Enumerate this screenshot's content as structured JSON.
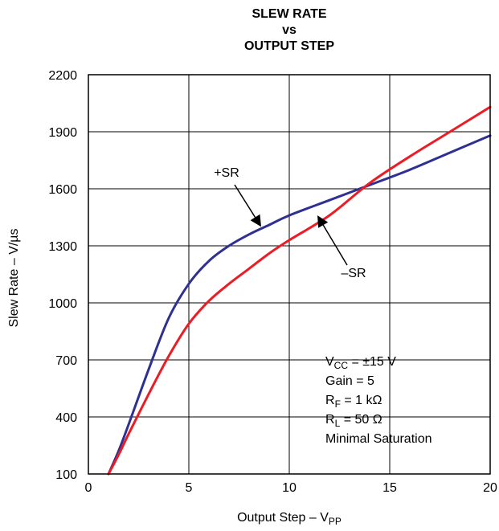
{
  "chart_data": {
    "type": "line",
    "title": [
      "SLEW RATE",
      "vs",
      "OUTPUT STEP"
    ],
    "xlabel": {
      "main": "Output Step – V",
      "sub": "PP"
    },
    "ylabel": "Slew Rate – V/µs",
    "xlim": [
      0,
      20
    ],
    "ylim": [
      100,
      2200
    ],
    "xticks": [
      "0",
      "5",
      "10",
      "15",
      "20"
    ],
    "yticks": [
      "100",
      "400",
      "700",
      "1000",
      "1300",
      "1600",
      "1900",
      "2200"
    ],
    "grid": true,
    "series": [
      {
        "name": "+SR",
        "color": "#2e3192",
        "x": [
          1,
          1.5,
          2,
          3,
          4,
          5,
          6,
          7,
          8,
          9,
          10,
          12,
          14,
          16,
          18,
          20
        ],
        "y": [
          100,
          220,
          360,
          650,
          920,
          1100,
          1220,
          1300,
          1360,
          1410,
          1460,
          1540,
          1620,
          1700,
          1790,
          1880
        ]
      },
      {
        "name": "–SR",
        "color": "#ed1c24",
        "x": [
          1,
          1.5,
          2,
          3,
          4,
          5,
          6,
          7,
          8,
          9,
          10,
          12,
          14,
          16,
          18,
          20
        ],
        "y": [
          100,
          200,
          310,
          520,
          720,
          890,
          1010,
          1100,
          1180,
          1260,
          1330,
          1460,
          1630,
          1770,
          1900,
          2030
        ]
      }
    ],
    "series_labels": [
      {
        "text": "+SR",
        "arrow_to": [
          8.6,
          1400
        ]
      },
      {
        "text": "–SR",
        "arrow_to": [
          11.4,
          1460
        ]
      }
    ],
    "annotation": [
      {
        "main": "V",
        "sub": "CC",
        "rest": " = ±15 V"
      },
      {
        "main": "Gain = 5",
        "sub": "",
        "rest": ""
      },
      {
        "main": "R",
        "sub": "F",
        "rest": " = 1 kΩ"
      },
      {
        "main": "R",
        "sub": "L",
        "rest": " = 50 Ω"
      },
      {
        "main": "Minimal Saturation",
        "sub": "",
        "rest": ""
      }
    ]
  }
}
